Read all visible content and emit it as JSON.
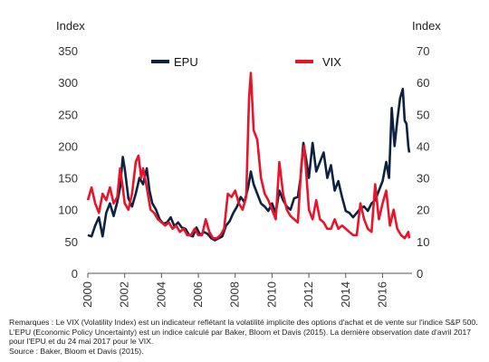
{
  "chart_data": {
    "type": "line",
    "title": "",
    "y_left_label": "Index",
    "y_right_label": "Index",
    "y_left_lim": [
      0,
      350
    ],
    "y_right_lim": [
      0,
      70
    ],
    "y_left_ticks": [
      "0",
      "50",
      "100",
      "150",
      "200",
      "250",
      "300",
      "350"
    ],
    "y_right_ticks": [
      "0",
      "10",
      "20",
      "30",
      "40",
      "50",
      "60",
      "70"
    ],
    "x_lim": [
      2000,
      2017.6
    ],
    "x_ticks": [
      "2000",
      "2002",
      "2004",
      "2006",
      "2008",
      "2010",
      "2012",
      "2014",
      "2016"
    ],
    "grid": false,
    "legend_position": "top",
    "series": [
      {
        "name": "EPU",
        "axis": "left",
        "color": "#0d2240",
        "points": [
          [
            2000.0,
            60
          ],
          [
            2000.2,
            58
          ],
          [
            2000.4,
            75
          ],
          [
            2000.6,
            88
          ],
          [
            2000.8,
            58
          ],
          [
            2001.0,
            95
          ],
          [
            2001.2,
            110
          ],
          [
            2001.4,
            90
          ],
          [
            2001.6,
            112
          ],
          [
            2001.75,
            135
          ],
          [
            2001.9,
            183
          ],
          [
            2002.0,
            165
          ],
          [
            2002.2,
            118
          ],
          [
            2002.4,
            105
          ],
          [
            2002.6,
            125
          ],
          [
            2002.8,
            150
          ],
          [
            2003.0,
            140
          ],
          [
            2003.2,
            165
          ],
          [
            2003.35,
            130
          ],
          [
            2003.5,
            110
          ],
          [
            2003.7,
            100
          ],
          [
            2003.9,
            85
          ],
          [
            2004.1,
            78
          ],
          [
            2004.3,
            80
          ],
          [
            2004.5,
            88
          ],
          [
            2004.7,
            74
          ],
          [
            2004.9,
            80
          ],
          [
            2005.1,
            72
          ],
          [
            2005.3,
            70
          ],
          [
            2005.5,
            60
          ],
          [
            2005.7,
            58
          ],
          [
            2005.9,
            72
          ],
          [
            2006.1,
            60
          ],
          [
            2006.3,
            65
          ],
          [
            2006.5,
            62
          ],
          [
            2006.7,
            55
          ],
          [
            2006.9,
            52
          ],
          [
            2007.1,
            55
          ],
          [
            2007.3,
            58
          ],
          [
            2007.5,
            75
          ],
          [
            2007.7,
            82
          ],
          [
            2007.9,
            95
          ],
          [
            2008.1,
            105
          ],
          [
            2008.3,
            120
          ],
          [
            2008.5,
            112
          ],
          [
            2008.7,
            135
          ],
          [
            2008.85,
            160
          ],
          [
            2009.0,
            140
          ],
          [
            2009.2,
            125
          ],
          [
            2009.4,
            110
          ],
          [
            2009.6,
            105
          ],
          [
            2009.8,
            98
          ],
          [
            2010.0,
            110
          ],
          [
            2010.2,
            95
          ],
          [
            2010.4,
            130
          ],
          [
            2010.6,
            115
          ],
          [
            2010.8,
            105
          ],
          [
            2011.0,
            100
          ],
          [
            2011.2,
            118
          ],
          [
            2011.4,
            120
          ],
          [
            2011.55,
            150
          ],
          [
            2011.7,
            205
          ],
          [
            2011.85,
            180
          ],
          [
            2012.0,
            150
          ],
          [
            2012.2,
            205
          ],
          [
            2012.4,
            160
          ],
          [
            2012.6,
            175
          ],
          [
            2012.8,
            190
          ],
          [
            2013.0,
            150
          ],
          [
            2013.2,
            170
          ],
          [
            2013.4,
            130
          ],
          [
            2013.6,
            145
          ],
          [
            2013.8,
            120
          ],
          [
            2014.0,
            98
          ],
          [
            2014.2,
            95
          ],
          [
            2014.4,
            88
          ],
          [
            2014.6,
            95
          ],
          [
            2014.8,
            102
          ],
          [
            2015.0,
            105
          ],
          [
            2015.2,
            98
          ],
          [
            2015.4,
            110
          ],
          [
            2015.6,
            115
          ],
          [
            2015.8,
            130
          ],
          [
            2016.0,
            145
          ],
          [
            2016.2,
            175
          ],
          [
            2016.35,
            150
          ],
          [
            2016.5,
            260
          ],
          [
            2016.65,
            200
          ],
          [
            2016.8,
            240
          ],
          [
            2016.95,
            275
          ],
          [
            2017.1,
            290
          ],
          [
            2017.2,
            240
          ],
          [
            2017.3,
            235
          ],
          [
            2017.4,
            200
          ],
          [
            2017.45,
            190
          ]
        ]
      },
      {
        "name": "VIX",
        "axis": "right",
        "color": "#e8152a",
        "points": [
          [
            2000.0,
            23
          ],
          [
            2000.2,
            27
          ],
          [
            2000.4,
            22
          ],
          [
            2000.6,
            19
          ],
          [
            2000.8,
            25
          ],
          [
            2001.0,
            23
          ],
          [
            2001.2,
            27
          ],
          [
            2001.4,
            22
          ],
          [
            2001.6,
            24
          ],
          [
            2001.75,
            33
          ],
          [
            2001.9,
            27
          ],
          [
            2002.0,
            22
          ],
          [
            2002.2,
            20
          ],
          [
            2002.4,
            25
          ],
          [
            2002.6,
            35
          ],
          [
            2002.75,
            37
          ],
          [
            2002.9,
            30
          ],
          [
            2003.0,
            33
          ],
          [
            2003.2,
            27
          ],
          [
            2003.4,
            20
          ],
          [
            2003.6,
            19
          ],
          [
            2003.8,
            17
          ],
          [
            2004.0,
            16
          ],
          [
            2004.2,
            15
          ],
          [
            2004.4,
            16
          ],
          [
            2004.6,
            14
          ],
          [
            2004.8,
            15
          ],
          [
            2005.0,
            13
          ],
          [
            2005.2,
            14
          ],
          [
            2005.4,
            12
          ],
          [
            2005.6,
            12
          ],
          [
            2005.8,
            14
          ],
          [
            2006.0,
            12
          ],
          [
            2006.2,
            12
          ],
          [
            2006.4,
            17
          ],
          [
            2006.6,
            13
          ],
          [
            2006.8,
            11
          ],
          [
            2007.0,
            11
          ],
          [
            2007.2,
            12
          ],
          [
            2007.4,
            14
          ],
          [
            2007.6,
            25
          ],
          [
            2007.8,
            24
          ],
          [
            2008.0,
            26
          ],
          [
            2008.2,
            22
          ],
          [
            2008.4,
            20
          ],
          [
            2008.6,
            24
          ],
          [
            2008.75,
            55
          ],
          [
            2008.85,
            63
          ],
          [
            2009.0,
            45
          ],
          [
            2009.2,
            42
          ],
          [
            2009.4,
            30
          ],
          [
            2009.6,
            25
          ],
          [
            2009.8,
            23
          ],
          [
            2010.0,
            20
          ],
          [
            2010.2,
            17
          ],
          [
            2010.4,
            35
          ],
          [
            2010.6,
            25
          ],
          [
            2010.8,
            20
          ],
          [
            2011.0,
            18
          ],
          [
            2011.2,
            17
          ],
          [
            2011.4,
            16
          ],
          [
            2011.6,
            35
          ],
          [
            2011.75,
            40
          ],
          [
            2011.9,
            28
          ],
          [
            2012.0,
            20
          ],
          [
            2012.2,
            17
          ],
          [
            2012.4,
            23
          ],
          [
            2012.6,
            17
          ],
          [
            2012.8,
            16
          ],
          [
            2013.0,
            14
          ],
          [
            2013.2,
            14
          ],
          [
            2013.4,
            17
          ],
          [
            2013.6,
            14
          ],
          [
            2013.8,
            15
          ],
          [
            2014.0,
            14
          ],
          [
            2014.2,
            13
          ],
          [
            2014.4,
            12
          ],
          [
            2014.6,
            12
          ],
          [
            2014.8,
            22
          ],
          [
            2015.0,
            17
          ],
          [
            2015.2,
            14
          ],
          [
            2015.4,
            13
          ],
          [
            2015.6,
            28
          ],
          [
            2015.8,
            17
          ],
          [
            2016.0,
            22
          ],
          [
            2016.2,
            26
          ],
          [
            2016.4,
            15
          ],
          [
            2016.6,
            20
          ],
          [
            2016.8,
            14
          ],
          [
            2017.0,
            12
          ],
          [
            2017.2,
            11
          ],
          [
            2017.4,
            13
          ],
          [
            2017.45,
            11
          ]
        ]
      }
    ]
  },
  "notes": {
    "line1": "Remarques : Le VIX (Volatility Index) est un indicateur reflétant la volatilité implicite des options d'achat et de vente sur l'indice S&P 500. L'EPU (Economic Policy Uncertainty) est un indice calculé par Baker, Bloom et Davis (2015). La dernière observation date d'avril 2017 pour l'EPU et du 24 mai 2017 pour le VIX.",
    "line2": "Source : Baker, Bloom et Davis (2015)."
  }
}
